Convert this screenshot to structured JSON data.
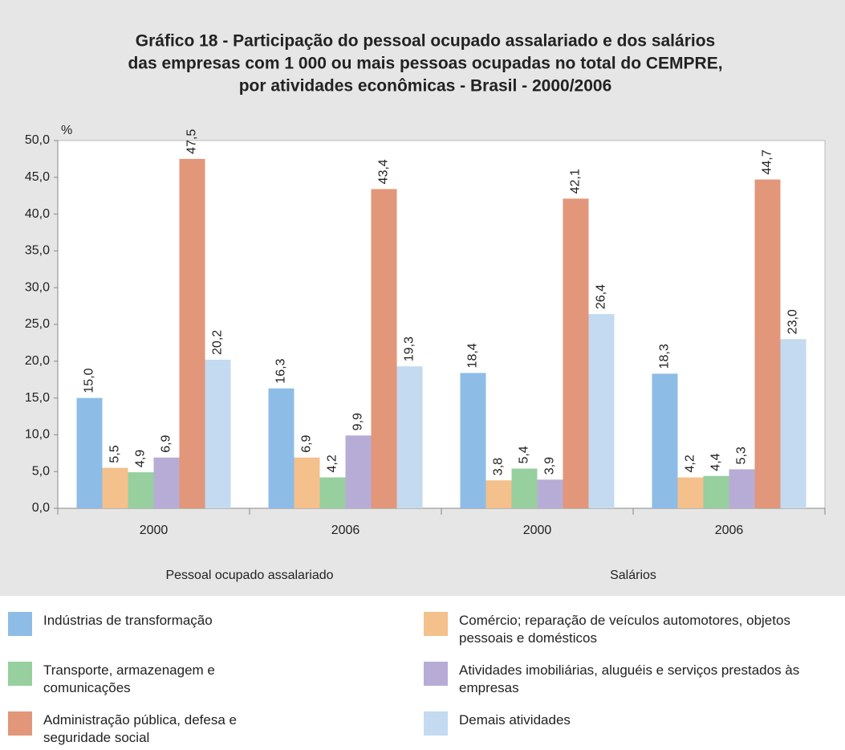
{
  "chart_data": {
    "type": "bar",
    "title": [
      "Gráfico 18 - Participação do pessoal ocupado assalariado e dos salários",
      "das empresas com 1 000 ou mais pessoas ocupadas no total do CEMPRE,",
      "por atividades econômicas - Brasil - 2000/2006"
    ],
    "y_label": "%",
    "categories": [
      "2000",
      "2006",
      "2000",
      "2006"
    ],
    "groups": [
      "Pessoal ocupado assalariado",
      "Salários"
    ],
    "ylim": [
      0,
      50
    ],
    "yticks": [
      {
        "value": 0,
        "label": "0,0"
      },
      {
        "value": 5,
        "label": "5,0"
      },
      {
        "value": 10,
        "label": "10,0"
      },
      {
        "value": 15,
        "label": "15,0"
      },
      {
        "value": 20,
        "label": "20,0"
      },
      {
        "value": 25,
        "label": "25,0"
      },
      {
        "value": 30,
        "label": "30,0"
      },
      {
        "value": 35,
        "label": "35,0"
      },
      {
        "value": 40,
        "label": "40,0"
      },
      {
        "value": 45,
        "label": "45,0"
      },
      {
        "value": 50,
        "label": "50,0"
      }
    ],
    "grid": false,
    "series": [
      {
        "name": "Indústrias de transformação",
        "color": "#8dbde6",
        "values": [
          15.0,
          16.3,
          18.4,
          18.3
        ],
        "value_labels": [
          "15,0",
          "16,3",
          "18,4",
          "18,3"
        ]
      },
      {
        "name": "Comércio; reparação de veículos automotores, objetos pessoais e domésticos",
        "color": "#f4c08c",
        "values": [
          5.5,
          6.9,
          3.8,
          4.2
        ],
        "value_labels": [
          "5,5",
          "6,9",
          "3,8",
          "4,2"
        ]
      },
      {
        "name": "Transporte, armazenagem e comunicações",
        "color": "#97cf9f",
        "values": [
          4.9,
          4.2,
          5.4,
          4.4
        ],
        "value_labels": [
          "4,9",
          "4,2",
          "5,4",
          "4,4"
        ]
      },
      {
        "name": "Atividades imobiliárias, aluguéis e serviços prestados às empresas",
        "color": "#b7acd6",
        "values": [
          6.9,
          9.9,
          3.9,
          5.3
        ],
        "value_labels": [
          "6,9",
          "9,9",
          "3,9",
          "5,3"
        ]
      },
      {
        "name": "Administração pública, defesa e seguridade social",
        "color": "#e2967a",
        "values": [
          47.5,
          43.4,
          42.1,
          44.7
        ],
        "value_labels": [
          "47,5",
          "43,4",
          "42,1",
          "44,7"
        ]
      },
      {
        "name": "Demais atividades",
        "color": "#c3daf1",
        "values": [
          20.2,
          19.3,
          26.4,
          23.0
        ],
        "value_labels": [
          "20,2",
          "19,3",
          "26,4",
          "23,0"
        ]
      }
    ]
  }
}
